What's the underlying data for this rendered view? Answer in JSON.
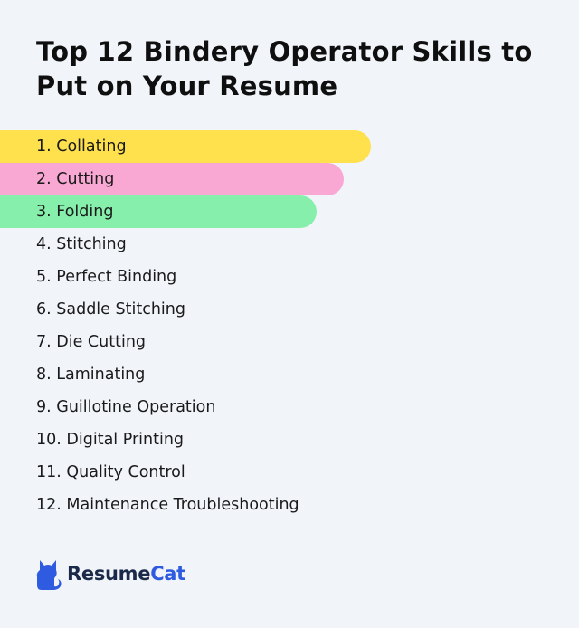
{
  "title": "Top 12 Bindery Operator Skills to Put on Your Resume",
  "skills": [
    {
      "label": "1. Collating",
      "highlight": "#ffe14d"
    },
    {
      "label": "2. Cutting",
      "highlight": "#f9a8d4"
    },
    {
      "label": "3. Folding",
      "highlight": "#86efac"
    },
    {
      "label": "4. Stitching",
      "highlight": null
    },
    {
      "label": "5. Perfect Binding",
      "highlight": null
    },
    {
      "label": "6. Saddle Stitching",
      "highlight": null
    },
    {
      "label": "7. Die Cutting",
      "highlight": null
    },
    {
      "label": "8. Laminating",
      "highlight": null
    },
    {
      "label": "9. Guillotine Operation",
      "highlight": null
    },
    {
      "label": "10. Digital Printing",
      "highlight": null
    },
    {
      "label": "11. Quality Control",
      "highlight": null
    },
    {
      "label": "12. Maintenance Troubleshooting",
      "highlight": null
    }
  ],
  "brand": {
    "part_a": "Resume",
    "part_b": "Cat",
    "icon": "cat-icon",
    "color": "#2f5be0"
  }
}
